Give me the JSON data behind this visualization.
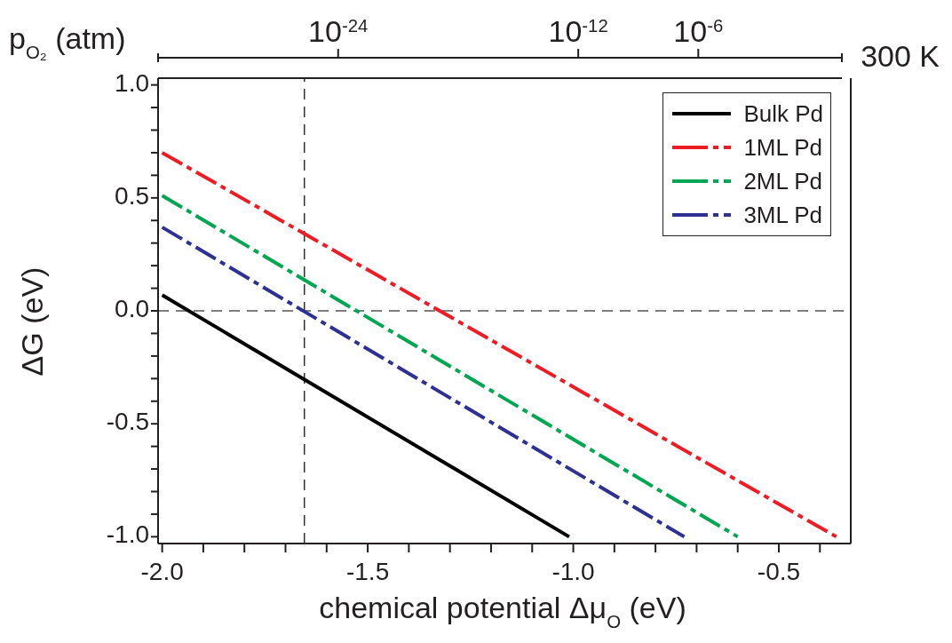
{
  "chart_data": {
    "type": "line",
    "xlabel": "chemical potential Δμ$_{O}$ (eV)",
    "ylabel": "ΔG (eV)",
    "x2label": "p$_{O₂}$ (atm)",
    "annotations": [
      "300 K"
    ],
    "series": [
      {
        "name": "Bulk Pd",
        "color": "#000000",
        "line_style": "solid",
        "x": [
          -2.0,
          -1.01
        ],
        "values": [
          0.07,
          -1.0
        ]
      },
      {
        "name": "1ML Pd",
        "color": "#ed1c24",
        "line_style": "dashdot",
        "x": [
          -2.0,
          -0.36
        ],
        "values": [
          0.7,
          -1.0
        ]
      },
      {
        "name": "2ML Pd",
        "color": "#00a651",
        "line_style": "dashdot",
        "x": [
          -2.0,
          -0.6
        ],
        "values": [
          0.51,
          -1.0
        ]
      },
      {
        "name": "3ML Pd",
        "color": "#2e3192",
        "line_style": "dashdot",
        "x": [
          -2.0,
          -0.73
        ],
        "values": [
          0.37,
          -1.0
        ]
      }
    ],
    "xlim": [
      -2.01,
      -0.325
    ],
    "xticks": [
      {
        "value": -2.0,
        "label": "-2.0"
      },
      {
        "value": -1.9,
        "label": null
      },
      {
        "value": -1.8,
        "label": null
      },
      {
        "value": -1.7,
        "label": null
      },
      {
        "value": -1.6,
        "label": null
      },
      {
        "value": -1.5,
        "label": "-1.5"
      },
      {
        "value": -1.4,
        "label": null
      },
      {
        "value": -1.3,
        "label": null
      },
      {
        "value": -1.2,
        "label": null
      },
      {
        "value": -1.1,
        "label": null
      },
      {
        "value": -1.0,
        "label": "-1.0"
      },
      {
        "value": -0.9,
        "label": null
      },
      {
        "value": -0.8,
        "label": null
      },
      {
        "value": -0.7,
        "label": null
      },
      {
        "value": -0.6,
        "label": null
      },
      {
        "value": -0.5,
        "label": "-0.5"
      },
      {
        "value": -0.4,
        "label": null
      }
    ],
    "ylim": [
      -1.03,
      1.03
    ],
    "yticks": [
      {
        "value": -1.0,
        "label": "-1.0"
      },
      {
        "value": -0.9,
        "label": null
      },
      {
        "value": -0.8,
        "label": null
      },
      {
        "value": -0.7,
        "label": null
      },
      {
        "value": -0.6,
        "label": null
      },
      {
        "value": -0.5,
        "label": "-0.5"
      },
      {
        "value": -0.4,
        "label": null
      },
      {
        "value": -0.3,
        "label": null
      },
      {
        "value": -0.2,
        "label": null
      },
      {
        "value": -0.1,
        "label": null
      },
      {
        "value": 0,
        "label": "0.0"
      },
      {
        "value": 0.1,
        "label": null
      },
      {
        "value": 0.2,
        "label": null
      },
      {
        "value": 0.3,
        "label": null
      },
      {
        "value": 0.4,
        "label": null
      },
      {
        "value": 0.5,
        "label": "0.5"
      },
      {
        "value": 0.6,
        "label": null
      },
      {
        "value": 0.7,
        "label": null
      },
      {
        "value": 0.8,
        "label": null
      },
      {
        "value": 0.9,
        "label": null
      },
      {
        "value": 1.0,
        "label": "1.0"
      }
    ],
    "log": "x2",
    "x2lim": [
      1e-33,
      15
    ],
    "x2ticks": [
      {
        "value": 1e-24,
        "label": "10$^{-24}$"
      },
      {
        "value": 1e-12,
        "label": "10$^{-12}$"
      },
      {
        "value": 1e-06,
        "label": "10$^{-6}$"
      }
    ],
    "ref_lines": [
      {
        "axis": "x",
        "value": -1.654,
        "color": "#000000",
        "line_style": "dashed"
      },
      {
        "axis": "y",
        "value": 0,
        "color": "#000000",
        "line_style": "dashed"
      }
    ],
    "legend": "top right",
    "marker": "none"
  }
}
